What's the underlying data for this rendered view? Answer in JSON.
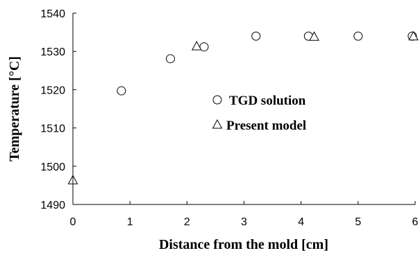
{
  "chart_data": {
    "type": "scatter",
    "xlabel": "Distance from the mold [cm]",
    "ylabel": "Temperature [°C]",
    "xlim": [
      0,
      6
    ],
    "ylim": [
      1490,
      1540
    ],
    "xticks": [
      "0",
      "1",
      "2",
      "3",
      "4",
      "5",
      "6"
    ],
    "yticks": [
      "1490",
      "1500",
      "1510",
      "1520",
      "1530",
      "1540"
    ],
    "grid": false,
    "legend_position": "center-right",
    "series": [
      {
        "name": "TGD solution",
        "marker": "circle",
        "points": [
          {
            "x": 0.85,
            "y": 1519.7
          },
          {
            "x": 1.71,
            "y": 1528.1
          },
          {
            "x": 2.3,
            "y": 1531.2
          },
          {
            "x": 3.21,
            "y": 1534.0
          },
          {
            "x": 4.13,
            "y": 1534.0
          },
          {
            "x": 5.0,
            "y": 1534.0
          },
          {
            "x": 5.95,
            "y": 1534.0
          }
        ]
      },
      {
        "name": "Present model",
        "marker": "triangle",
        "points": [
          {
            "x": 0.0,
            "y": 1496.3
          },
          {
            "x": 2.17,
            "y": 1531.3
          },
          {
            "x": 4.23,
            "y": 1533.8
          },
          {
            "x": 5.97,
            "y": 1533.9
          }
        ]
      }
    ]
  }
}
